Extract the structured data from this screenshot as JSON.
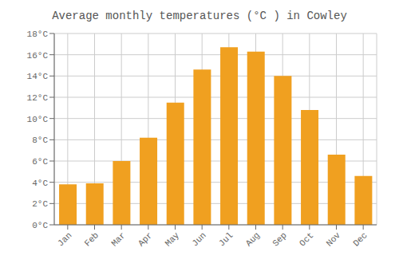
{
  "chart_data": {
    "type": "bar",
    "title": "Average monthly temperatures (°C ) in Cowley",
    "categories": [
      "Jan",
      "Feb",
      "Mar",
      "Apr",
      "May",
      "Jun",
      "Jul",
      "Aug",
      "Sep",
      "Oct",
      "Nov",
      "Dec"
    ],
    "values": [
      3.8,
      3.9,
      6.0,
      8.2,
      11.5,
      14.6,
      16.7,
      16.3,
      14.0,
      10.8,
      6.6,
      4.6
    ],
    "color": "#F0A020",
    "ylim": [
      0,
      18
    ],
    "yticks": [
      {
        "value": 0,
        "label": "0°C"
      },
      {
        "value": 2,
        "label": "2°C"
      },
      {
        "value": 4,
        "label": "4°C"
      },
      {
        "value": 6,
        "label": "6°C"
      },
      {
        "value": 8,
        "label": "8°C"
      },
      {
        "value": 10,
        "label": "10°C"
      },
      {
        "value": 12,
        "label": "12°C"
      },
      {
        "value": 14,
        "label": "14°C"
      },
      {
        "value": 16,
        "label": "16°C"
      },
      {
        "value": 18,
        "label": "18°C"
      }
    ],
    "grid": true
  }
}
